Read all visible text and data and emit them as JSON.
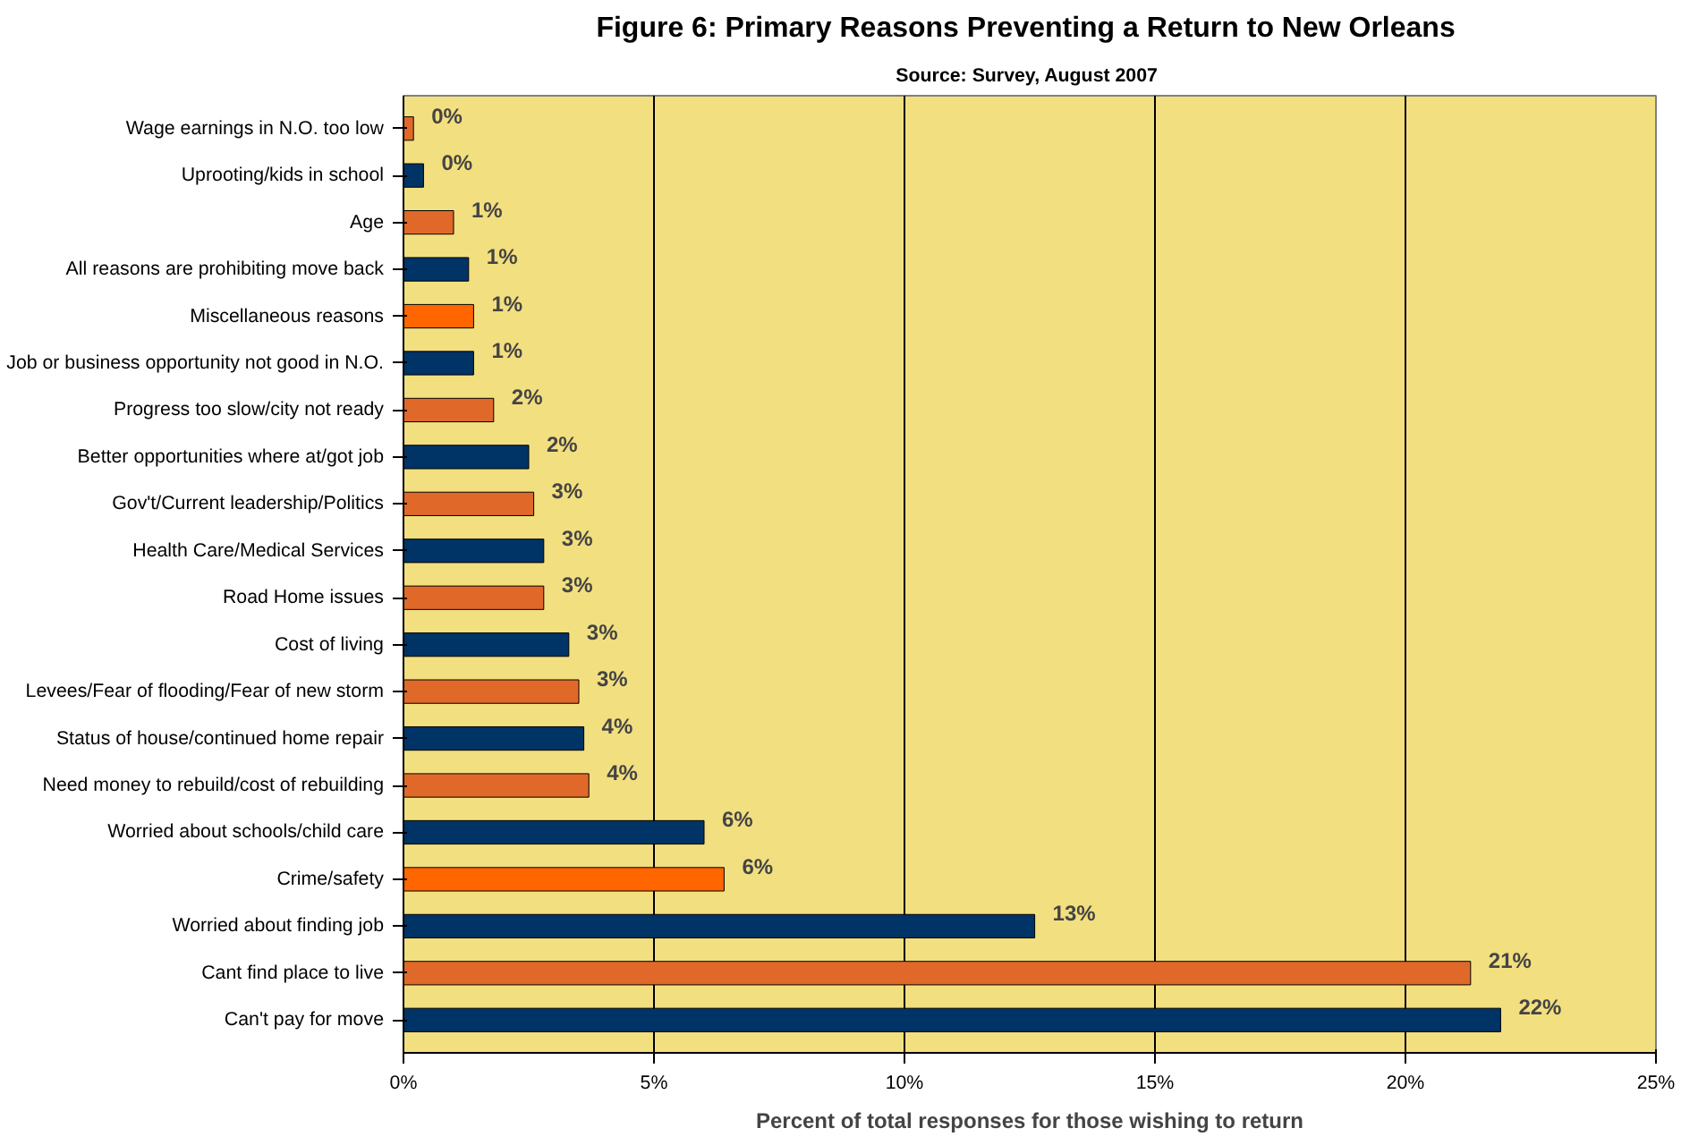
{
  "chart_data": {
    "type": "bar",
    "orientation": "horizontal",
    "title": "Figure 6:  Primary Reasons Preventing a Return to New Orleans",
    "subtitle": "Source:  Survey, August 2007",
    "xlabel": "Percent of total responses for those wishing to return",
    "categories": [
      "Wage earnings in N.O. too low",
      "Uprooting/kids in school",
      "Age",
      "All reasons are prohibiting move back",
      "Miscellaneous reasons",
      "Job or business opportunity not good in N.O.",
      "Progress too slow/city not ready",
      "Better opportunities where at/got job",
      "Gov't/Current leadership/Politics",
      "Health Care/Medical Services",
      "Road Home issues",
      "Cost of living",
      "Levees/Fear of flooding/Fear of new storm",
      "Status of house/continued home repair",
      "Need money to rebuild/cost of rebuilding",
      "Worried about schools/child care",
      "Crime/safety",
      "Worried about finding job",
      "Cant find place to live",
      "Can't pay for move"
    ],
    "values": [
      0.2,
      0.4,
      1.0,
      1.3,
      1.4,
      1.4,
      1.8,
      2.5,
      2.6,
      2.8,
      2.8,
      3.3,
      3.5,
      3.6,
      3.7,
      6.0,
      6.4,
      12.6,
      21.3,
      21.9
    ],
    "colors": [
      "#e0692a",
      "#003366",
      "#e0692a",
      "#003366",
      "#ff6600",
      "#003366",
      "#e0692a",
      "#003366",
      "#e0692a",
      "#003366",
      "#e0692a",
      "#003366",
      "#e0692a",
      "#003366",
      "#e0692a",
      "#003366",
      "#ff6600",
      "#003366",
      "#e0692a",
      "#003366"
    ],
    "value_labels": [
      "0%",
      "0%",
      "1%",
      "1%",
      "1%",
      "1%",
      "2%",
      "2%",
      "3%",
      "3%",
      "3%",
      "3%",
      "3%",
      "4%",
      "4%",
      "6%",
      "6%",
      "13%",
      "21%",
      "22%"
    ],
    "xlim": [
      0,
      25
    ],
    "xticks": [
      {
        "value": 0,
        "label": "0%"
      },
      {
        "value": 5,
        "label": "5%"
      },
      {
        "value": 10,
        "label": "10%"
      },
      {
        "value": 15,
        "label": "15%"
      },
      {
        "value": 20,
        "label": "20%"
      },
      {
        "value": 25,
        "label": "25%"
      }
    ],
    "grid": "x"
  }
}
